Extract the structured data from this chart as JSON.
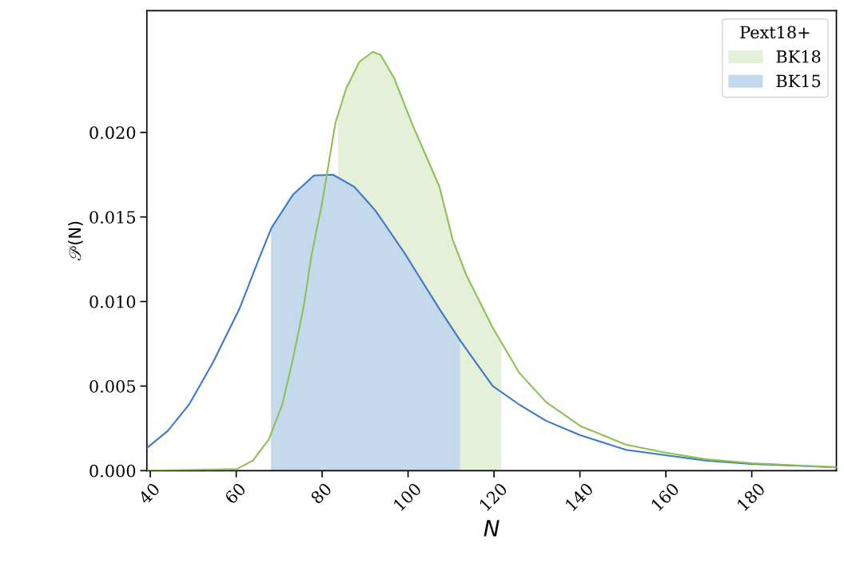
{
  "chart_data": {
    "type": "line",
    "xlabel": "N",
    "ylabel": "𝒫(N)",
    "legend_title": "Pext18+",
    "legend": "top right",
    "grid": false,
    "xlim": [
      39.2,
      199.7
    ],
    "xticks": [
      40,
      60,
      80,
      100,
      120,
      140,
      160,
      180
    ],
    "ylim": [
      0,
      0.0272
    ],
    "yticks": [
      {
        "value": 0,
        "label": "0.000"
      },
      {
        "value": 0.005,
        "label": "0.005"
      },
      {
        "value": 0.01,
        "label": "0.010"
      },
      {
        "value": 0.015,
        "label": "0.015"
      },
      {
        "value": 0.02,
        "label": "0.020"
      }
    ],
    "series": [
      {
        "type": "area",
        "name": "BK18",
        "color": "#e4f0d8",
        "x": [
          83.7,
          85.6,
          88.7,
          91.8,
          93.6,
          96.7,
          101.1,
          107.3,
          110.4,
          113.5,
          119.7,
          121.7
        ],
        "values": [
          0.0211,
          0.02261,
          0.02418,
          0.02476,
          0.02458,
          0.02324,
          0.02041,
          0.01679,
          0.01365,
          0.0116,
          0.00846,
          0.0077
        ]
      },
      {
        "type": "area",
        "name": "BK15",
        "color": "#c4d9ec",
        "x": [
          68.1,
          73.2,
          78.1,
          82.5,
          87.4,
          92.4,
          99.2,
          101.1,
          107.3,
          112.1
        ],
        "values": [
          0.0143,
          0.01632,
          0.01745,
          0.0175,
          0.0168,
          0.01538,
          0.01286,
          0.01208,
          0.00956,
          0.0077
        ]
      },
      {
        "color": "#3a78c9",
        "x": [
          39.2,
          44.1,
          49.0,
          54.6,
          60.8,
          65.1,
          68.2,
          73.2,
          78.1,
          82.5,
          87.4,
          92.4,
          99.2,
          101.1,
          107.3,
          112.2,
          119.7,
          125.9,
          132.1,
          140.1,
          150.7,
          159.9,
          169.3,
          180,
          199.7
        ],
        "values": [
          0.00133,
          0.00236,
          0.0039,
          0.0064,
          0.0096,
          0.0124,
          0.01435,
          0.01632,
          0.01745,
          0.0175,
          0.0168,
          0.01538,
          0.01286,
          0.01208,
          0.00956,
          0.00767,
          0.005,
          0.0039,
          0.00295,
          0.00209,
          0.00123,
          0.00091,
          0.00059,
          0.00039,
          0.0002
        ]
      },
      {
        "color": "#8cc152",
        "x": [
          39.2,
          60.2,
          63.9,
          67.6,
          70.7,
          73.2,
          75.7,
          77.5,
          80.0,
          83.1,
          85.6,
          88.7,
          91.8,
          93.6,
          96.7,
          101.1,
          107.3,
          110.4,
          113.5,
          119.7,
          125.9,
          132.1,
          140.1,
          150.7,
          159.9,
          169.3,
          180,
          199.7
        ],
        "values": [
          0,
          0.0001,
          0.0006,
          0.00185,
          0.0039,
          0.0066,
          0.0097,
          0.0127,
          0.01585,
          0.02057,
          0.02261,
          0.02418,
          0.02476,
          0.02458,
          0.02324,
          0.02041,
          0.01679,
          0.01365,
          0.0116,
          0.00846,
          0.00578,
          0.00406,
          0.00264,
          0.00154,
          0.00107,
          0.00067,
          0.00044,
          0.0002
        ]
      }
    ]
  }
}
